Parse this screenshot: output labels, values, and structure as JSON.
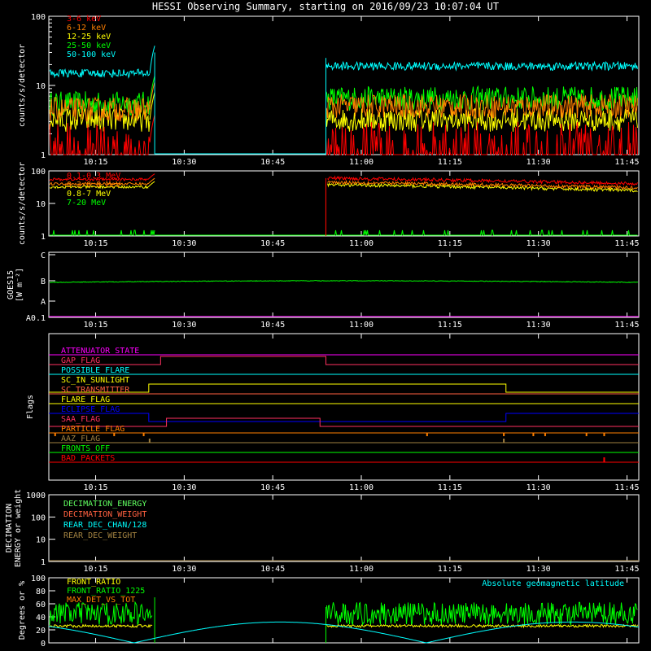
{
  "title": "HESSI Observing Summary, starting on 2016/09/23 10:07:04 UT",
  "colors": {
    "fg": "#ffffff",
    "red": "#ff0000",
    "orange": "#ff7f00",
    "yellow": "#ffff00",
    "green": "#00ff00",
    "cyan": "#00ffff",
    "magenta": "#ff00ff",
    "blue": "#0000ff",
    "salmon": "#ff6040",
    "olive": "#a08040",
    "pink": "#ff3060",
    "lightgreen": "#60ff60"
  },
  "chart_data": [
    {
      "id": "lowe",
      "type": "line",
      "ylabel": "counts/s/detector",
      "yscale": "log",
      "ylim": [
        1,
        100
      ],
      "ytick_labels": [
        "1",
        "10",
        "100"
      ],
      "xlim_minutes": [
        10.07,
        11.78
      ],
      "xtick_labels": [
        "10:15",
        "10:30",
        "10:45",
        "11:00",
        "11:15",
        "11:30",
        "11:45"
      ],
      "data_gap": [
        "10:25",
        "10:54"
      ],
      "legend": [
        "3-6 keV",
        "6-12 keV",
        "12-25 keV",
        "25-50 keV",
        "50-100 keV"
      ],
      "series": [
        {
          "name": "3-6 keV",
          "color": "red",
          "pre": 1.5,
          "post": 1.5
        },
        {
          "name": "6-12 keV",
          "color": "orange",
          "pre": 4.5,
          "post": 5
        },
        {
          "name": "12-25 keV",
          "color": "yellow",
          "pre": 3.2,
          "post": 3.2
        },
        {
          "name": "25-50 keV",
          "color": "green",
          "pre": 5.5,
          "post": 6.5
        },
        {
          "name": "50-100 keV",
          "color": "cyan",
          "pre": 15,
          "post": 19
        }
      ]
    },
    {
      "id": "highe",
      "type": "line",
      "ylabel": "counts/s/detector",
      "yscale": "log",
      "ylim": [
        1,
        100
      ],
      "ytick_labels": [
        "1",
        "10",
        "100"
      ],
      "xtick_labels": [
        "10:15",
        "10:30",
        "10:45",
        "11:00",
        "11:15",
        "11:30",
        "11:45"
      ],
      "legend": [
        "0.1-0.3 MeV",
        "0.3-0.8 MeV",
        "0.8-7 MeV",
        "7-20 MeV"
      ],
      "series": [
        {
          "name": "0.1-0.3 MeV",
          "color": "red",
          "pre": 55,
          "post": [
            60,
            40
          ]
        },
        {
          "name": "0.3-0.8 MeV",
          "color": "orange",
          "pre": 40,
          "post": [
            45,
            30
          ]
        },
        {
          "name": "0.8-7 MeV",
          "color": "yellow",
          "pre": 32,
          "post": [
            38,
            25
          ]
        },
        {
          "name": "7-20 MeV",
          "color": "green",
          "pre": 1,
          "post": 1
        }
      ]
    },
    {
      "id": "goes",
      "type": "line",
      "ylabel": "GOES15",
      "ylabel2": "[W m⁻²]",
      "ytick_labels": [
        "A0.1",
        "A",
        "B",
        "C"
      ],
      "xtick_labels": [
        "10:15",
        "10:30",
        "10:45",
        "11:00",
        "11:15",
        "11:30",
        "11:45"
      ],
      "series": [
        {
          "name": "long",
          "color": "green",
          "value": "B"
        },
        {
          "name": "short",
          "color": "magenta",
          "value": "A0.1"
        }
      ]
    },
    {
      "id": "flags",
      "type": "line",
      "ylabel": "Flags",
      "xtick_labels": [
        "10:15",
        "10:30",
        "10:45",
        "11:00",
        "11:15",
        "11:30",
        "11:45"
      ],
      "flags": [
        {
          "name": "ATTENUATOR_STATE",
          "color": "magenta"
        },
        {
          "name": "GAP_FLAG",
          "color": "pink"
        },
        {
          "name": "POSSIBLE_FLARE",
          "color": "cyan"
        },
        {
          "name": "SC_IN_SUNLIGHT",
          "color": "yellow"
        },
        {
          "name": "SC_TRANSMITTER",
          "color": "salmon"
        },
        {
          "name": "FLARE_FLAG",
          "color": "yellow"
        },
        {
          "name": "ECLIPSE_FLAG",
          "color": "blue"
        },
        {
          "name": "SAA_FLAG",
          "color": "pink"
        },
        {
          "name": "PARTICLE_FLAG",
          "color": "orange"
        },
        {
          "name": "AAZ_FLAG",
          "color": "olive"
        },
        {
          "name": "FRONTS_OFF",
          "color": "green"
        },
        {
          "name": "BAD_PACKETS",
          "color": "red"
        }
      ]
    },
    {
      "id": "decim",
      "type": "line",
      "ylabel": "DECIMATION",
      "ylabel2": "ENERGY or weight",
      "yscale": "log",
      "ytick_labels": [
        "1",
        "10",
        "100",
        "1000"
      ],
      "xtick_labels": [
        "10:15",
        "10:30",
        "10:45",
        "11:00",
        "11:15",
        "11:30",
        "11:45"
      ],
      "legend": [
        "DECIMATION_ENERGY",
        "DECIMATION_WEIGHT",
        "REAR_DEC_CHAN/128",
        "REAR_DEC_WEIGHT"
      ]
    },
    {
      "id": "ratio",
      "type": "line",
      "ylabel": "Degrees or %",
      "ylim": [
        0,
        100
      ],
      "ytick_labels": [
        "0",
        "20",
        "40",
        "60",
        "80",
        "100"
      ],
      "xtick_labels": [
        "10:15",
        "10:30",
        "10:45",
        "11:00",
        "11:15",
        "11:30",
        "11:45"
      ],
      "legend": [
        "FRONT_RATIO",
        "FRONT_RATIO_1225",
        "MAX_DET_VS_TOT"
      ],
      "annotation": "Absolute geomagnetic latitude",
      "series": [
        {
          "name": "FRONT_RATIO",
          "color": "yellow",
          "value": 26
        },
        {
          "name": "FRONT_RATIO_1225",
          "color": "green",
          "value": 45
        },
        {
          "name": "MAX_DET_VS_TOT",
          "color": "orange",
          "value": 28
        },
        {
          "name": "Absolute geomagnetic latitude",
          "color": "cyan",
          "value": [
            0,
            32
          ]
        }
      ]
    }
  ]
}
